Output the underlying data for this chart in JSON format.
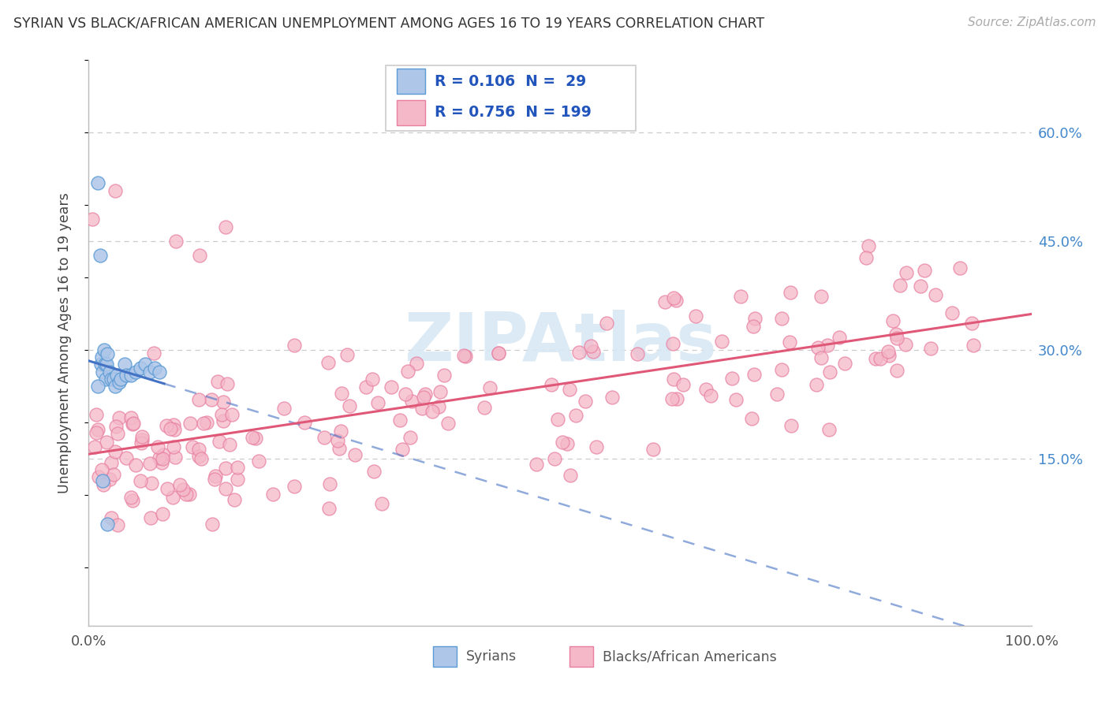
{
  "title": "SYRIAN VS BLACK/AFRICAN AMERICAN UNEMPLOYMENT AMONG AGES 16 TO 19 YEARS CORRELATION CHART",
  "source": "Source: ZipAtlas.com",
  "ylabel": "Unemployment Among Ages 16 to 19 years",
  "ytick_labels": [
    "15.0%",
    "30.0%",
    "45.0%",
    "60.0%"
  ],
  "ytick_values": [
    0.15,
    0.3,
    0.45,
    0.6
  ],
  "legend_r": [
    0.106,
    0.756
  ],
  "legend_n": [
    29,
    199
  ],
  "scatter_color_syrian_fill": "#aec6e8",
  "scatter_color_syrian_edge": "#5b9bd5",
  "scatter_color_black_fill": "#f4b8c8",
  "scatter_color_black_edge": "#e87fa0",
  "trendline_syrian_color": "#4472c4",
  "trendline_black_color": "#e05878",
  "background_color": "#ffffff",
  "grid_color": "#cccccc",
  "title_color": "#333333",
  "legend_text_color": "#2255bb",
  "right_axis_color": "#4488cc",
  "watermark_color": "#d8e8f4",
  "xlim": [
    0.0,
    1.0
  ],
  "ylim": [
    -0.08,
    0.7
  ]
}
